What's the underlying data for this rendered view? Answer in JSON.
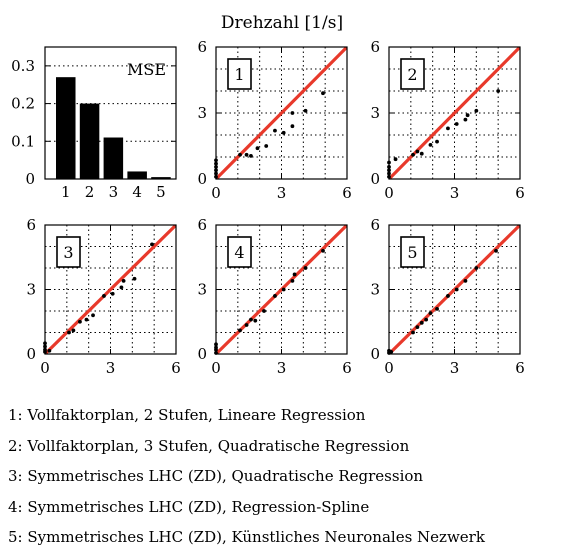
{
  "figure": {
    "title": "Drehzahl [1/s]"
  },
  "chart_data": [
    {
      "type": "bar",
      "panel": "mse",
      "label": "MSE",
      "categories": [
        "1",
        "2",
        "3",
        "4",
        "5"
      ],
      "values": [
        0.27,
        0.2,
        0.11,
        0.02,
        0.005
      ],
      "ylim": [
        0,
        0.35
      ],
      "yticks": [
        0,
        0.1,
        0.2,
        0.3
      ],
      "ytick_labels": [
        "0",
        "0.1",
        "0.2",
        "0.3"
      ],
      "bar_color": "#000000"
    },
    {
      "type": "scatter",
      "panel": "1",
      "label": "1",
      "xlim": [
        0,
        6
      ],
      "ylim": [
        0,
        6
      ],
      "ticks": [
        0,
        3,
        6
      ],
      "grid": true,
      "reference_line": "y = x",
      "line_color": "#e8392b",
      "points": [
        [
          0,
          0.1
        ],
        [
          0,
          0.25
        ],
        [
          0,
          0.4
        ],
        [
          0,
          0.55
        ],
        [
          0,
          0.7
        ],
        [
          0,
          0.85
        ],
        [
          1.1,
          1.1
        ],
        [
          1.4,
          1.1
        ],
        [
          1.6,
          1.05
        ],
        [
          1.9,
          1.4
        ],
        [
          2.3,
          1.5
        ],
        [
          2.7,
          2.2
        ],
        [
          3.1,
          2.1
        ],
        [
          3.5,
          2.4
        ],
        [
          3.5,
          3.0
        ],
        [
          4.1,
          3.1
        ],
        [
          4.9,
          3.9
        ]
      ]
    },
    {
      "type": "scatter",
      "panel": "2",
      "label": "2",
      "xlim": [
        0,
        6
      ],
      "ylim": [
        0,
        6
      ],
      "ticks": [
        0,
        3,
        6
      ],
      "grid": true,
      "reference_line": "y = x",
      "line_color": "#e8392b",
      "points": [
        [
          0,
          0.1
        ],
        [
          0,
          0.25
        ],
        [
          0,
          0.4
        ],
        [
          0,
          0.55
        ],
        [
          0,
          0.75
        ],
        [
          0.3,
          0.9
        ],
        [
          1.1,
          1.1
        ],
        [
          1.3,
          1.25
        ],
        [
          1.5,
          1.15
        ],
        [
          1.9,
          1.55
        ],
        [
          2.2,
          1.7
        ],
        [
          2.7,
          2.3
        ],
        [
          3.1,
          2.5
        ],
        [
          3.5,
          2.7
        ],
        [
          3.6,
          2.9
        ],
        [
          4.0,
          3.1
        ],
        [
          5.0,
          4.0
        ]
      ]
    },
    {
      "type": "scatter",
      "panel": "3",
      "label": "3",
      "xlim": [
        0,
        6
      ],
      "ylim": [
        0,
        6
      ],
      "ticks": [
        0,
        3,
        6
      ],
      "grid": true,
      "reference_line": "y = x",
      "line_color": "#e8392b",
      "points": [
        [
          0,
          0.1
        ],
        [
          0,
          0.2
        ],
        [
          0,
          0.35
        ],
        [
          0,
          0.5
        ],
        [
          0.2,
          0.15
        ],
        [
          1.1,
          1.0
        ],
        [
          1.3,
          1.1
        ],
        [
          1.6,
          1.5
        ],
        [
          1.9,
          1.6
        ],
        [
          2.2,
          1.8
        ],
        [
          2.7,
          2.7
        ],
        [
          3.1,
          2.8
        ],
        [
          3.5,
          3.1
        ],
        [
          3.6,
          3.4
        ],
        [
          4.1,
          3.5
        ],
        [
          4.9,
          5.1
        ]
      ]
    },
    {
      "type": "scatter",
      "panel": "4",
      "label": "4",
      "xlim": [
        0,
        6
      ],
      "ylim": [
        0,
        6
      ],
      "ticks": [
        0,
        3,
        6
      ],
      "grid": true,
      "reference_line": "y = x",
      "line_color": "#e8392b",
      "points": [
        [
          0,
          0.05
        ],
        [
          0,
          0.2
        ],
        [
          0,
          0.3
        ],
        [
          0,
          0.45
        ],
        [
          1.1,
          1.1
        ],
        [
          1.4,
          1.35
        ],
        [
          1.6,
          1.6
        ],
        [
          1.8,
          1.55
        ],
        [
          2.2,
          2.0
        ],
        [
          2.7,
          2.7
        ],
        [
          3.1,
          3.0
        ],
        [
          3.5,
          3.4
        ],
        [
          3.6,
          3.7
        ],
        [
          4.1,
          4.0
        ],
        [
          4.9,
          4.8
        ]
      ]
    },
    {
      "type": "scatter",
      "panel": "5",
      "label": "5",
      "xlim": [
        0,
        6
      ],
      "ylim": [
        0,
        6
      ],
      "ticks": [
        0,
        3,
        6
      ],
      "grid": true,
      "reference_line": "y = x",
      "line_color": "#e8392b",
      "points": [
        [
          0,
          0.05
        ],
        [
          0,
          0.15
        ],
        [
          0.1,
          0.1
        ],
        [
          1.1,
          1.0
        ],
        [
          1.3,
          1.25
        ],
        [
          1.5,
          1.45
        ],
        [
          1.7,
          1.6
        ],
        [
          1.9,
          1.9
        ],
        [
          2.2,
          2.1
        ],
        [
          2.7,
          2.7
        ],
        [
          3.1,
          3.0
        ],
        [
          3.5,
          3.4
        ],
        [
          4.0,
          4.0
        ],
        [
          4.9,
          4.8
        ]
      ]
    }
  ],
  "legend": [
    "1: Vollfaktorplan, 2 Stufen, Lineare Regression",
    "2: Vollfaktorplan, 3 Stufen, Quadratische Regression",
    "3: Symmetrisches LHC (ZD), Quadratische Regression",
    "4: Symmetrisches LHC (ZD), Regression-Spline",
    "5: Symmetrisches LHC (ZD), Künstliches Neuronales Nezwerk"
  ]
}
